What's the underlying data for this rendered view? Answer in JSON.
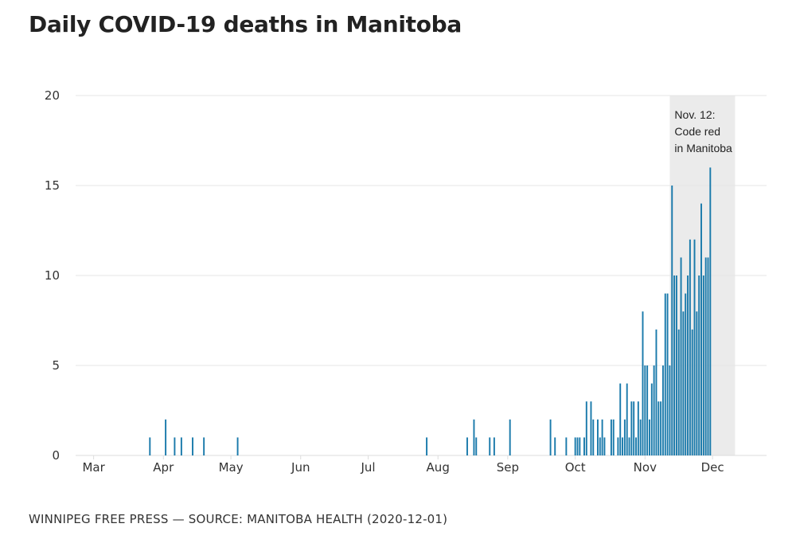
{
  "chart_data": {
    "type": "bar",
    "title": "Daily COVID-19 deaths in Manitoba",
    "xlabel": "",
    "ylabel": "",
    "ylim": [
      0,
      20
    ],
    "yticks": [
      0,
      5,
      10,
      15,
      20
    ],
    "grid": true,
    "year": 2020,
    "xrange": [
      "2020-02-22",
      "2020-12-25"
    ],
    "xtick_labels": [
      {
        "date": "2020-03-01",
        "label": "Mar"
      },
      {
        "date": "2020-04-01",
        "label": "Apr"
      },
      {
        "date": "2020-05-01",
        "label": "May"
      },
      {
        "date": "2020-06-01",
        "label": "Jun"
      },
      {
        "date": "2020-07-01",
        "label": "Jul"
      },
      {
        "date": "2020-08-01",
        "label": "Aug"
      },
      {
        "date": "2020-09-01",
        "label": "Sep"
      },
      {
        "date": "2020-10-01",
        "label": "Oct"
      },
      {
        "date": "2020-11-01",
        "label": "Nov"
      },
      {
        "date": "2020-12-01",
        "label": "Dec"
      }
    ],
    "series": [
      {
        "name": "Daily deaths",
        "color": "#1a7aab",
        "points": [
          [
            "2020-03-26",
            1
          ],
          [
            "2020-04-02",
            2
          ],
          [
            "2020-04-06",
            1
          ],
          [
            "2020-04-09",
            1
          ],
          [
            "2020-04-14",
            1
          ],
          [
            "2020-04-19",
            1
          ],
          [
            "2020-05-04",
            1
          ],
          [
            "2020-07-27",
            1
          ],
          [
            "2020-08-14",
            1
          ],
          [
            "2020-08-17",
            2
          ],
          [
            "2020-08-18",
            1
          ],
          [
            "2020-08-24",
            1
          ],
          [
            "2020-08-26",
            1
          ],
          [
            "2020-09-02",
            2
          ],
          [
            "2020-09-20",
            2
          ],
          [
            "2020-09-22",
            1
          ],
          [
            "2020-09-27",
            1
          ],
          [
            "2020-10-01",
            1
          ],
          [
            "2020-10-02",
            1
          ],
          [
            "2020-10-03",
            1
          ],
          [
            "2020-10-05",
            1
          ],
          [
            "2020-10-06",
            3
          ],
          [
            "2020-10-08",
            3
          ],
          [
            "2020-10-09",
            2
          ],
          [
            "2020-10-11",
            2
          ],
          [
            "2020-10-12",
            1
          ],
          [
            "2020-10-13",
            2
          ],
          [
            "2020-10-14",
            1
          ],
          [
            "2020-10-17",
            2
          ],
          [
            "2020-10-18",
            2
          ],
          [
            "2020-10-20",
            1
          ],
          [
            "2020-10-21",
            4
          ],
          [
            "2020-10-22",
            1
          ],
          [
            "2020-10-23",
            2
          ],
          [
            "2020-10-24",
            4
          ],
          [
            "2020-10-25",
            1
          ],
          [
            "2020-10-26",
            3
          ],
          [
            "2020-10-27",
            3
          ],
          [
            "2020-10-28",
            1
          ],
          [
            "2020-10-29",
            3
          ],
          [
            "2020-10-30",
            2
          ],
          [
            "2020-10-31",
            8
          ],
          [
            "2020-11-01",
            5
          ],
          [
            "2020-11-02",
            5
          ],
          [
            "2020-11-03",
            2
          ],
          [
            "2020-11-04",
            4
          ],
          [
            "2020-11-05",
            5
          ],
          [
            "2020-11-06",
            7
          ],
          [
            "2020-11-07",
            3
          ],
          [
            "2020-11-08",
            3
          ],
          [
            "2020-11-09",
            5
          ],
          [
            "2020-11-10",
            9
          ],
          [
            "2020-11-11",
            9
          ],
          [
            "2020-11-12",
            5
          ],
          [
            "2020-11-13",
            15
          ],
          [
            "2020-11-14",
            10
          ],
          [
            "2020-11-15",
            10
          ],
          [
            "2020-11-16",
            7
          ],
          [
            "2020-11-17",
            11
          ],
          [
            "2020-11-18",
            8
          ],
          [
            "2020-11-19",
            9
          ],
          [
            "2020-11-20",
            10
          ],
          [
            "2020-11-21",
            12
          ],
          [
            "2020-11-22",
            7
          ],
          [
            "2020-11-23",
            12
          ],
          [
            "2020-11-24",
            8
          ],
          [
            "2020-11-25",
            10
          ],
          [
            "2020-11-26",
            14
          ],
          [
            "2020-11-27",
            10
          ],
          [
            "2020-11-28",
            11
          ],
          [
            "2020-11-29",
            11
          ],
          [
            "2020-11-30",
            16
          ]
        ]
      }
    ],
    "annotations": [
      {
        "type": "shaded-region",
        "from": "2020-11-12",
        "to": "2020-12-11",
        "color": "#ebebeb",
        "text_lines": [
          "Nov. 12:",
          "Code red",
          "in Manitoba"
        ]
      }
    ]
  },
  "footer": "WINNIPEG FREE PRESS — SOURCE: MANITOBA HEALTH (2020-12-01)"
}
